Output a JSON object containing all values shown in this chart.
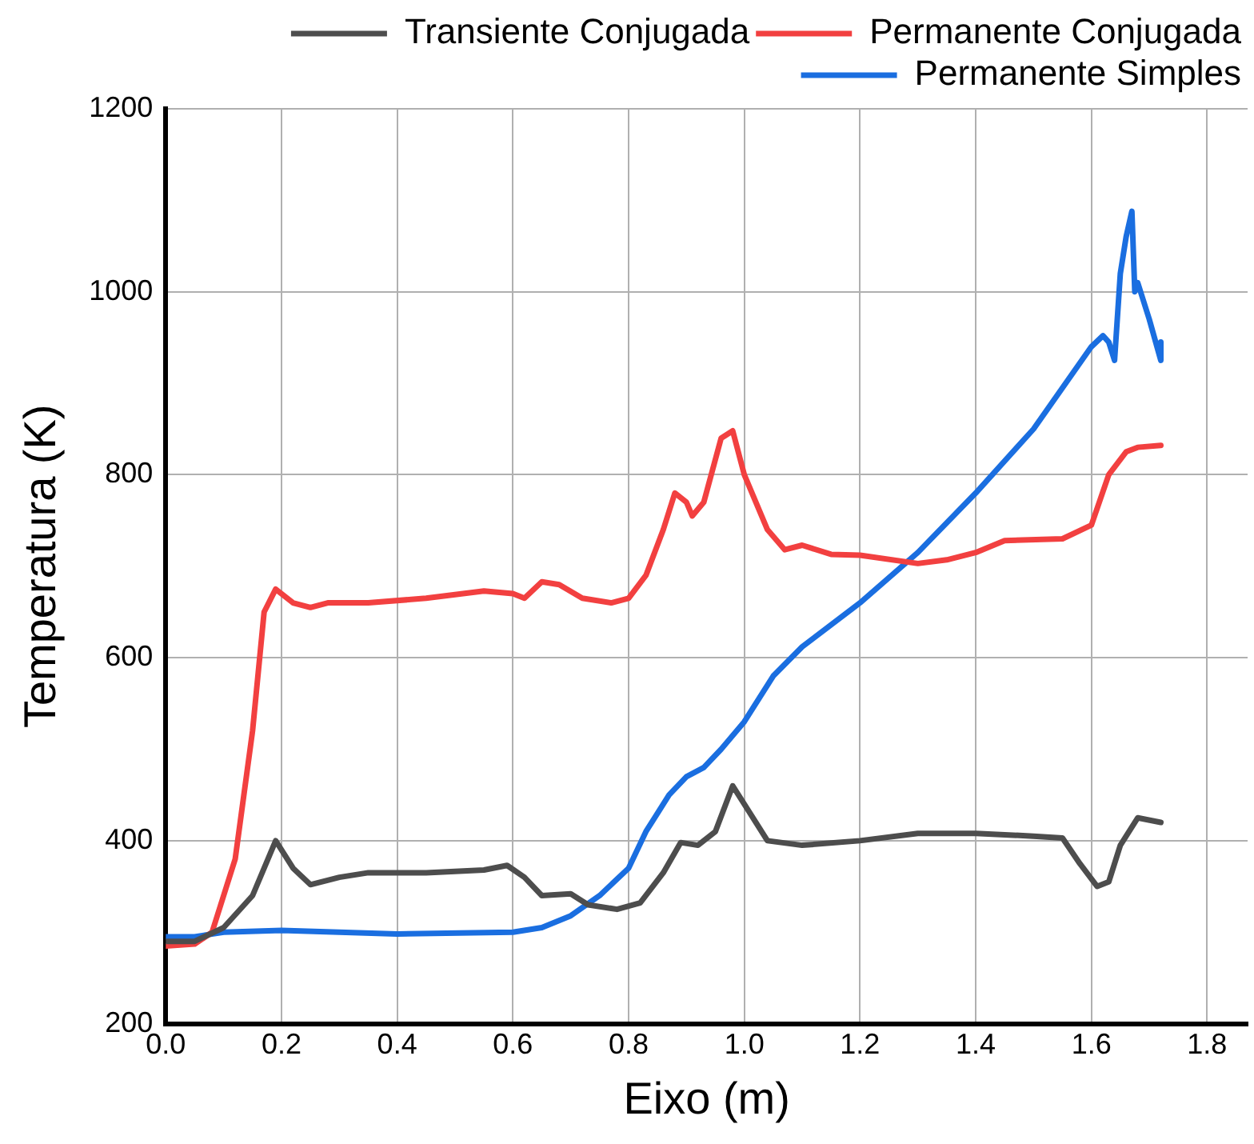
{
  "chart_data": {
    "type": "line",
    "xlabel": "Eixo (m)",
    "ylabel": "Temperatura (K)",
    "xlim": [
      0,
      1.87
    ],
    "xticks": [
      {
        "value": 0,
        "label": "0.0"
      },
      {
        "value": 0.2,
        "label": "0.2"
      },
      {
        "value": 0.4,
        "label": "0.4"
      },
      {
        "value": 0.6,
        "label": "0.6"
      },
      {
        "value": 0.8,
        "label": "0.8"
      },
      {
        "value": 1,
        "label": "1.0"
      },
      {
        "value": 1.2,
        "label": "1.2"
      },
      {
        "value": 1.4,
        "label": "1.4"
      },
      {
        "value": 1.6,
        "label": "1.6"
      },
      {
        "value": 1.8,
        "label": "1.8"
      }
    ],
    "ylim": [
      200,
      1200
    ],
    "yticks": [
      200,
      400,
      600,
      800,
      1000,
      1200
    ],
    "grid": true,
    "legend": "top right",
    "marker": "none",
    "line_style": "solid",
    "series": [
      {
        "name": "Transiente Conjugada",
        "color": "#4d4d4d",
        "x": [
          0,
          0.05,
          0.1,
          0.15,
          0.19,
          0.22,
          0.25,
          0.3,
          0.35,
          0.45,
          0.55,
          0.59,
          0.62,
          0.65,
          0.7,
          0.73,
          0.78,
          0.82,
          0.86,
          0.89,
          0.92,
          0.95,
          0.98,
          1.0,
          1.04,
          1.1,
          1.2,
          1.3,
          1.4,
          1.5,
          1.55,
          1.58,
          1.61,
          1.63,
          1.65,
          1.68,
          1.72
        ],
        "values": [
          290,
          290,
          305,
          340,
          400,
          370,
          352,
          360,
          365,
          365,
          368,
          373,
          360,
          340,
          342,
          330,
          325,
          332,
          365,
          398,
          395,
          410,
          460,
          440,
          400,
          395,
          400,
          408,
          408,
          405,
          403,
          375,
          350,
          355,
          395,
          425,
          420
        ]
      },
      {
        "name": "Permanente Conjugada",
        "color": "#f24040",
        "x": [
          0,
          0.05,
          0.08,
          0.12,
          0.15,
          0.17,
          0.19,
          0.22,
          0.25,
          0.28,
          0.35,
          0.45,
          0.55,
          0.6,
          0.62,
          0.65,
          0.68,
          0.72,
          0.77,
          0.8,
          0.83,
          0.86,
          0.88,
          0.9,
          0.91,
          0.93,
          0.96,
          0.98,
          1.0,
          1.04,
          1.07,
          1.1,
          1.15,
          1.2,
          1.3,
          1.35,
          1.4,
          1.45,
          1.55,
          1.6,
          1.63,
          1.66,
          1.68,
          1.72
        ],
        "values": [
          285,
          287,
          300,
          380,
          520,
          650,
          675,
          660,
          655,
          660,
          660,
          665,
          673,
          670,
          665,
          683,
          680,
          665,
          660,
          665,
          690,
          740,
          780,
          770,
          755,
          770,
          840,
          848,
          800,
          740,
          718,
          723,
          713,
          712,
          703,
          707,
          715,
          728,
          730,
          745,
          800,
          825,
          830,
          832
        ]
      },
      {
        "name": "Permanente Simples",
        "color": "#1a6ee0",
        "x": [
          0,
          0.05,
          0.1,
          0.2,
          0.4,
          0.6,
          0.65,
          0.7,
          0.75,
          0.8,
          0.83,
          0.87,
          0.9,
          0.93,
          0.96,
          1.0,
          1.05,
          1.1,
          1.2,
          1.3,
          1.4,
          1.5,
          1.6,
          1.62,
          1.63,
          1.64,
          1.65,
          1.66,
          1.67,
          1.675,
          1.68,
          1.7,
          1.72,
          1.72
        ],
        "values": [
          295,
          295,
          300,
          302,
          298,
          300,
          305,
          318,
          340,
          370,
          410,
          450,
          470,
          480,
          500,
          530,
          580,
          612,
          660,
          715,
          780,
          850,
          940,
          952,
          945,
          925,
          1020,
          1060,
          1088,
          1000,
          1010,
          970,
          925,
          945
        ]
      }
    ]
  }
}
